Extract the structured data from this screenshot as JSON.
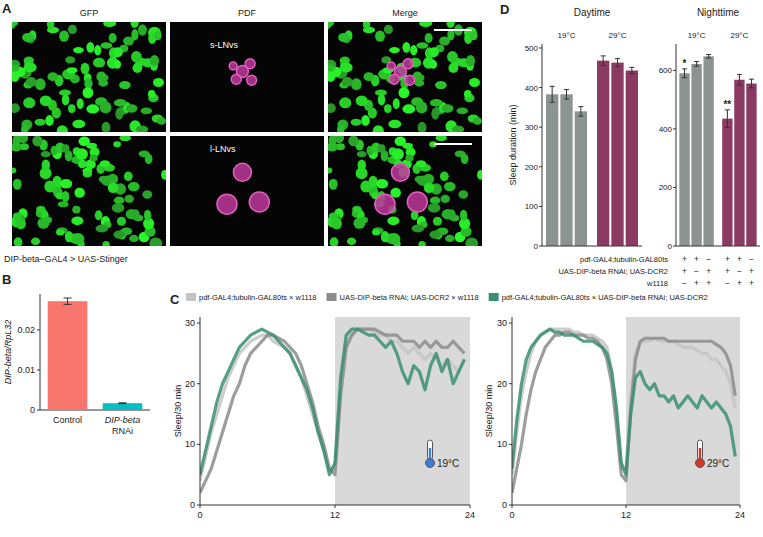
{
  "chart_data": [
    {
      "panel": "A",
      "type": "image_grid",
      "columns": [
        "GFP",
        "PDF",
        "Merge"
      ],
      "row_labels": [
        "s-LNvs",
        "l-LNvs"
      ],
      "caption": "DIP-beta–GAL4 > UAS-Stinger"
    },
    {
      "panel": "B",
      "type": "bar",
      "categories": [
        "Control",
        "DIP-beta RNAi"
      ],
      "values": [
        0.0272,
        0.0017
      ],
      "errors": [
        0.0008,
        0.0001
      ],
      "colors": [
        "#f8766d",
        "#00bfc4"
      ],
      "y_label": "DIP-beta/RpL32",
      "ylim": [
        0,
        0.029
      ],
      "yticks": [
        0,
        0.01,
        0.02
      ]
    },
    {
      "panel": "C",
      "type": "line",
      "title": "19°C",
      "y_label": "Sleep/30 min",
      "x": [
        0,
        0.5,
        1,
        1.5,
        2,
        2.5,
        3,
        3.5,
        4,
        4.5,
        5,
        5.5,
        6,
        6.5,
        7,
        7.5,
        8,
        8.5,
        9,
        9.5,
        10,
        10.5,
        11,
        11.5,
        12,
        12.5,
        13,
        13.5,
        14,
        14.5,
        15,
        15.5,
        16,
        16.5,
        17,
        17.5,
        18,
        18.5,
        19,
        19.5,
        20,
        20.5,
        21,
        21.5,
        22,
        22.5,
        23,
        23.5
      ],
      "xlim": [
        0,
        24
      ],
      "xticks": [
        0,
        12,
        24
      ],
      "ylim": [
        0,
        31
      ],
      "yticks": [
        0,
        10,
        20,
        30
      ],
      "shaded_x": [
        12,
        24
      ],
      "legend": "top",
      "series": [
        {
          "name": "pdf-GAL4;tubulin-GAL80ts × w1118",
          "color": "#c4c4c4",
          "values": [
            4,
            8,
            12,
            15,
            18,
            21,
            23,
            25,
            26,
            27,
            27.5,
            28,
            28,
            27,
            26.5,
            26,
            25,
            23,
            21,
            18,
            15,
            12,
            9,
            6,
            6,
            20,
            27,
            28,
            29,
            29,
            29,
            28.5,
            28,
            28,
            27,
            27,
            26,
            25,
            26,
            25,
            24,
            25,
            24,
            23,
            24,
            23,
            22,
            24
          ]
        },
        {
          "name": "UAS-DIP-beta RNAi; UAS-DCR2 × w1118",
          "color": "#8c8c8c",
          "values": [
            2,
            4,
            6,
            9,
            12,
            15,
            18,
            20,
            23,
            25,
            26,
            27,
            28,
            28,
            27.5,
            27,
            26,
            25,
            23,
            20,
            17,
            13,
            10,
            6,
            5,
            18,
            26,
            28,
            29,
            29,
            29,
            29,
            28.5,
            28,
            28,
            28,
            27,
            27,
            27,
            26,
            27,
            26,
            27,
            26,
            26,
            27,
            26,
            25
          ]
        },
        {
          "name": "pdf-GAL4;tubulin-GAL80ts × UAS-DIP-beta RNAi; UAS-DCR2",
          "color": "#3a8f73",
          "values": [
            5,
            9,
            13,
            17,
            20,
            22,
            24,
            26,
            27,
            28,
            28.5,
            29,
            28.5,
            28,
            27,
            26,
            25,
            23,
            21,
            19,
            16,
            12,
            9,
            5,
            7,
            21,
            28,
            29,
            29,
            28.5,
            28,
            28,
            27,
            26,
            27,
            25,
            22,
            20,
            23,
            22,
            19,
            23,
            25,
            22,
            24,
            20,
            22,
            24
          ]
        }
      ]
    },
    {
      "panel": "C",
      "type": "line",
      "title": "29°C",
      "y_label": "Sleep/30 min",
      "x": [
        0,
        0.5,
        1,
        1.5,
        2,
        2.5,
        3,
        3.5,
        4,
        4.5,
        5,
        5.5,
        6,
        6.5,
        7,
        7.5,
        8,
        8.5,
        9,
        9.5,
        10,
        10.5,
        11,
        11.5,
        12,
        12.5,
        13,
        13.5,
        14,
        14.5,
        15,
        15.5,
        16,
        16.5,
        17,
        17.5,
        18,
        18.5,
        19,
        19.5,
        20,
        20.5,
        21,
        21.5,
        22,
        22.5,
        23,
        23.5
      ],
      "xlim": [
        0,
        24
      ],
      "xticks": [
        0,
        12,
        24
      ],
      "ylim": [
        0,
        31
      ],
      "yticks": [
        0,
        10,
        20,
        30
      ],
      "shaded_x": [
        12,
        24
      ],
      "series": [
        {
          "color": "#c4c4c4",
          "values": [
            5,
            12,
            18,
            22,
            25,
            27,
            28,
            28.5,
            29,
            29,
            29,
            29,
            29,
            28.5,
            28.5,
            28,
            28,
            28,
            27.5,
            27,
            26,
            22,
            15,
            6,
            6,
            18,
            25,
            27,
            27,
            27,
            27.5,
            27,
            27,
            27,
            27,
            26.5,
            26,
            26,
            26,
            25.5,
            25,
            25,
            24,
            24,
            23,
            22,
            20,
            16
          ]
        },
        {
          "color": "#8c8c8c",
          "values": [
            2,
            6,
            10,
            15,
            19,
            22,
            24,
            26,
            27,
            28,
            28,
            28.5,
            28.5,
            28,
            28,
            28,
            27.5,
            27.5,
            27,
            26,
            24,
            20,
            13,
            5,
            4,
            16,
            24,
            27,
            27.5,
            27.5,
            27.5,
            27.5,
            27.5,
            27,
            27,
            27,
            27,
            27,
            27,
            27,
            27,
            27,
            27,
            26.5,
            26,
            25,
            23,
            18
          ]
        },
        {
          "color": "#3a8f73",
          "values": [
            6,
            14,
            20,
            24,
            26,
            27,
            28,
            28.5,
            29,
            28.5,
            28.5,
            28,
            28,
            28,
            27.5,
            27,
            27,
            27,
            26.5,
            26,
            25,
            22,
            16,
            7,
            5,
            15,
            21,
            22,
            20,
            19,
            20,
            18,
            18,
            17,
            18,
            16,
            17,
            18,
            17,
            16,
            18,
            17,
            16,
            17,
            16,
            15,
            13,
            8
          ]
        }
      ]
    },
    {
      "panel": "D",
      "type": "bar",
      "title": "Daytime",
      "y_label": "Sleep duration (min)",
      "ylim": [
        0,
        510
      ],
      "yticks": [
        0,
        100,
        200,
        300,
        400,
        500
      ],
      "series": [
        {
          "name": "19°C",
          "color": "#8c9491",
          "values": [
            383,
            383,
            340
          ],
          "errors": [
            20,
            12,
            12
          ]
        },
        {
          "name": "29°C",
          "color": "#8b3a62",
          "values": [
            468,
            463,
            443
          ],
          "errors": [
            12,
            10,
            8
          ]
        }
      ]
    },
    {
      "type": "bar",
      "title": "Nighttime",
      "ylim": [
        0,
        690
      ],
      "yticks": [
        0,
        200,
        400,
        600
      ],
      "series": [
        {
          "name": "19°C",
          "color": "#8c9491",
          "values": [
            590,
            622,
            648
          ],
          "errors": [
            15,
            8,
            6
          ],
          "significance": [
            "*",
            null,
            null
          ]
        },
        {
          "name": "29°C",
          "color": "#8b3a62",
          "values": [
            435,
            568,
            555
          ],
          "errors": [
            30,
            18,
            15
          ],
          "significance": [
            "**",
            null,
            null
          ]
        }
      ],
      "genotypes": {
        "rows": [
          "pdf-GAL4;tubulin-GAL80ts",
          "UAS-DIP-beta RNAi; UAS-DCR2",
          "w1118"
        ],
        "signs": [
          [
            "+",
            "+",
            "−",
            "+",
            "+",
            "−"
          ],
          [
            "+",
            "−",
            "+",
            "+",
            "−",
            "+"
          ],
          [
            "−",
            "+",
            "+",
            "−",
            "+",
            "+"
          ]
        ]
      }
    }
  ]
}
